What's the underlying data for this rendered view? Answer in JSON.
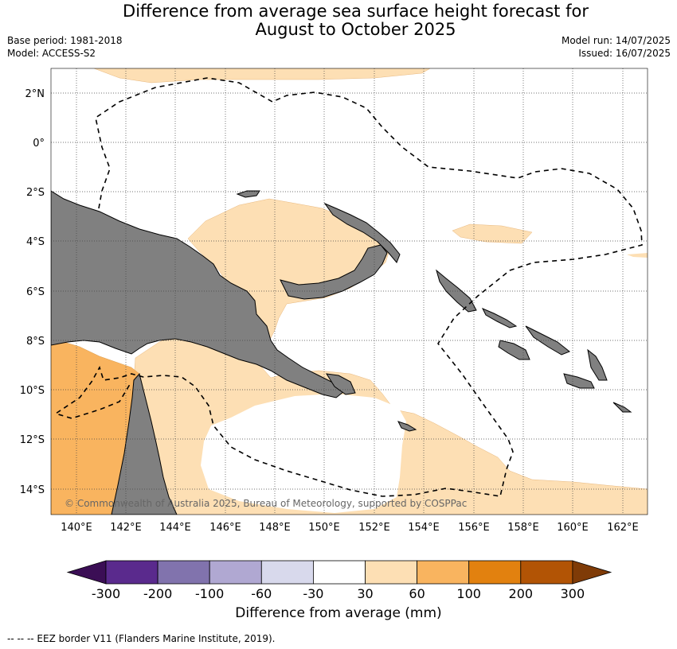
{
  "title_line1": "Difference from average sea surface height forecast for",
  "title_line2": "August to October 2025",
  "meta_left": [
    "Base period: 1981-2018",
    "Model: ACCESS-S2"
  ],
  "meta_right": [
    "Model run: 14/07/2025",
    "Issued: 16/07/2025"
  ],
  "map": {
    "lat_labels": [
      "2°N",
      "0°",
      "2°S",
      "4°S",
      "6°S",
      "8°S",
      "10°S",
      "12°S",
      "14°S"
    ],
    "lon_labels": [
      "140°E",
      "142°E",
      "144°E",
      "146°E",
      "148°E",
      "150°E",
      "152°E",
      "154°E",
      "156°E",
      "158°E",
      "160°E",
      "162°E"
    ],
    "copyright": "© Commonwealth of Australia 2025, Bureau of Meteorology, supported by COSPPac",
    "colors": {
      "land": "#808080",
      "light_orange": "#fddfb4",
      "mid_orange": "#f9b45f",
      "eez": "#000000"
    }
  },
  "colorbar": {
    "title": "Difference from average (mm)",
    "ticks": [
      "-300",
      "-200",
      "-100",
      "-60",
      "-30",
      "30",
      "60",
      "100",
      "200",
      "300"
    ],
    "colors": [
      "#3b0e55",
      "#5a2a8d",
      "#8173ad",
      "#b0a8d2",
      "#d8d9ec",
      "#ffffff",
      "#fddfb4",
      "#f9b45f",
      "#e2810f",
      "#b25405",
      "#7f3b07"
    ]
  },
  "footnote": "--  --  -- EEZ border V11 (Flanders Marine Institute, 2019)."
}
